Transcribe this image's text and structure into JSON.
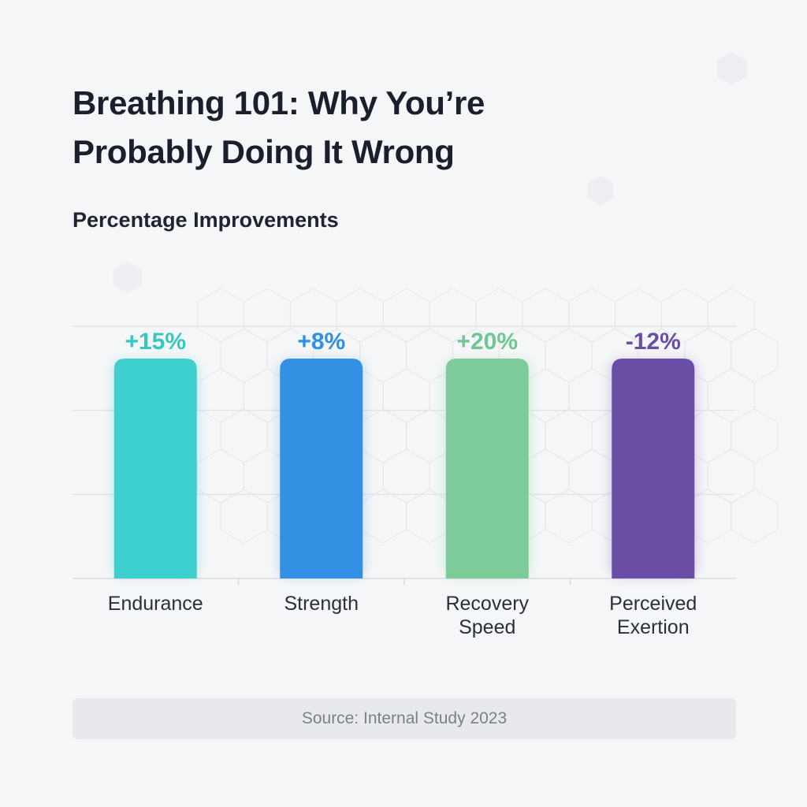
{
  "page": {
    "title": "Breathing 101: Why You’re Probably Doing It Wrong",
    "source": "Source: Internal Study 2023"
  },
  "chart_data": {
    "type": "bar",
    "title": "Percentage Improvements",
    "categories": [
      [
        "Endurance"
      ],
      [
        "Strength"
      ],
      [
        "Recovery",
        "Speed"
      ],
      [
        "Perceived",
        "Exertion"
      ]
    ],
    "values": [
      15,
      8,
      20,
      -12
    ],
    "value_labels": [
      "+15%",
      "+8%",
      "+20%",
      "-12%"
    ],
    "colors": [
      "#3ecfcf",
      "#3291e2",
      "#7ccb98",
      "#6a4ea6"
    ],
    "label_colors": [
      "#36c7c0",
      "#2f8fe3",
      "#6fc68f",
      "#6a4ea6"
    ],
    "grid": true,
    "xlabel": "",
    "ylabel": ""
  }
}
